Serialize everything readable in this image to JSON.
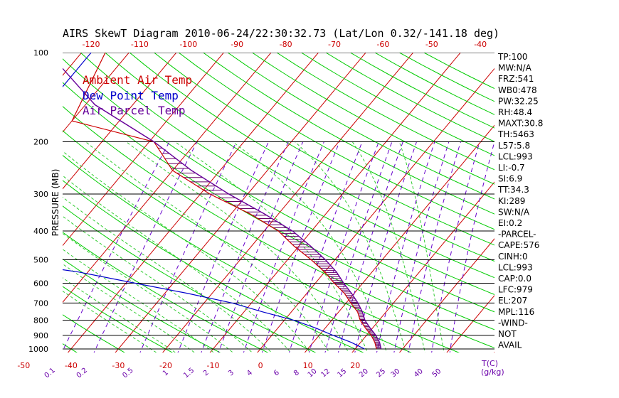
{
  "header": {
    "title": "AIRS SkewT Diagram 2010-06-24/22:30:32.73 (Lat/Lon 0.32/-141.18 deg)"
  },
  "chart_data": {
    "type": "line",
    "ylabel": "PRESSURE (MB)",
    "x_unit_label": "T(C)",
    "mixing_unit_label": "(g/kg)",
    "pressure_ticks": [
      100,
      200,
      300,
      400,
      500,
      600,
      700,
      800,
      900,
      1000
    ],
    "top_temp_ticks": [
      -120,
      -110,
      -100,
      -90,
      -80,
      -70,
      -60,
      -50,
      -40
    ],
    "bottom_temp_ticks": [
      -50,
      -40,
      -30,
      -20,
      -10,
      0,
      10,
      20
    ],
    "mixing_ratio_labels": [
      "0.1",
      "0.2",
      "0.5",
      "1",
      "1.5",
      "2",
      "3",
      "4",
      "6",
      "8",
      "10",
      "12",
      "15",
      "20",
      "25",
      "30",
      "40",
      "50"
    ],
    "legend": [
      {
        "label": "Ambient Air Temp",
        "color": "#cc0000"
      },
      {
        "label": "Dew Point Temp",
        "color": "#0000cc"
      },
      {
        "label": "Air Parcel Temp",
        "color": "#660099"
      }
    ],
    "series": [
      {
        "name": "Ambient Air Temp",
        "color": "#cc0000",
        "points": [
          [
            100,
            -85
          ],
          [
            170,
            -80
          ],
          [
            200,
            -59
          ],
          [
            250,
            -50
          ],
          [
            300,
            -38
          ],
          [
            350,
            -26
          ],
          [
            400,
            -17
          ],
          [
            450,
            -11
          ],
          [
            500,
            -5
          ],
          [
            550,
            0
          ],
          [
            600,
            4
          ],
          [
            650,
            8
          ],
          [
            700,
            11
          ],
          [
            750,
            14
          ],
          [
            800,
            16
          ],
          [
            850,
            18.5
          ],
          [
            900,
            21
          ],
          [
            950,
            23
          ],
          [
            1000,
            24.5
          ]
        ]
      },
      {
        "name": "Dew Point Temp",
        "color": "#0000cc",
        "points": [
          [
            100,
            -88
          ],
          [
            170,
            -88
          ],
          [
            200,
            -85
          ],
          [
            250,
            -75
          ],
          [
            300,
            -79
          ],
          [
            350,
            -84
          ],
          [
            400,
            -91
          ],
          [
            450,
            -82
          ],
          [
            500,
            -72
          ],
          [
            550,
            -52
          ],
          [
            600,
            -38
          ],
          [
            650,
            -25
          ],
          [
            700,
            -14
          ],
          [
            750,
            -6
          ],
          [
            800,
            2
          ],
          [
            850,
            8
          ],
          [
            900,
            13
          ],
          [
            950,
            18
          ],
          [
            1000,
            22
          ]
        ]
      },
      {
        "name": "Air Parcel Temp",
        "color": "#660099",
        "points": [
          [
            100,
            -97
          ],
          [
            150,
            -78
          ],
          [
            200,
            -59
          ],
          [
            250,
            -46
          ],
          [
            300,
            -34
          ],
          [
            350,
            -23
          ],
          [
            400,
            -14
          ],
          [
            450,
            -7.5
          ],
          [
            500,
            -2
          ],
          [
            550,
            2.5
          ],
          [
            600,
            6
          ],
          [
            650,
            9.5
          ],
          [
            700,
            12.5
          ],
          [
            750,
            15
          ],
          [
            800,
            17
          ],
          [
            850,
            19.5
          ],
          [
            900,
            22
          ],
          [
            950,
            24
          ],
          [
            1000,
            25.5
          ]
        ]
      }
    ]
  },
  "stats": [
    "TP:100",
    "MW:N/A",
    "FRZ:541",
    "WB0:478",
    "PW:32.25",
    "RH:48.4",
    "MAXT:30.8",
    "TH:5463",
    "L57:5.8",
    "LCL:993",
    "LI:-0.7",
    "SI:6.9",
    "TT:34.3",
    "KI:289",
    "SW:N/A",
    "EI:0.2",
    "-PARCEL-",
    "CAPE:576",
    "CINH:0",
    "LCL:993",
    "CAP:0.0",
    "LFC:979",
    "EL:207",
    "MPL:116",
    "-WIND-",
    "NOT",
    "AVAIL"
  ],
  "colors": {
    "dry_adiabat": "#00cc00",
    "moist_adiabat": "#33cc33",
    "isotherm": "#cc0000",
    "mixing_ratio": "#6600cc",
    "isobar": "#000000"
  }
}
